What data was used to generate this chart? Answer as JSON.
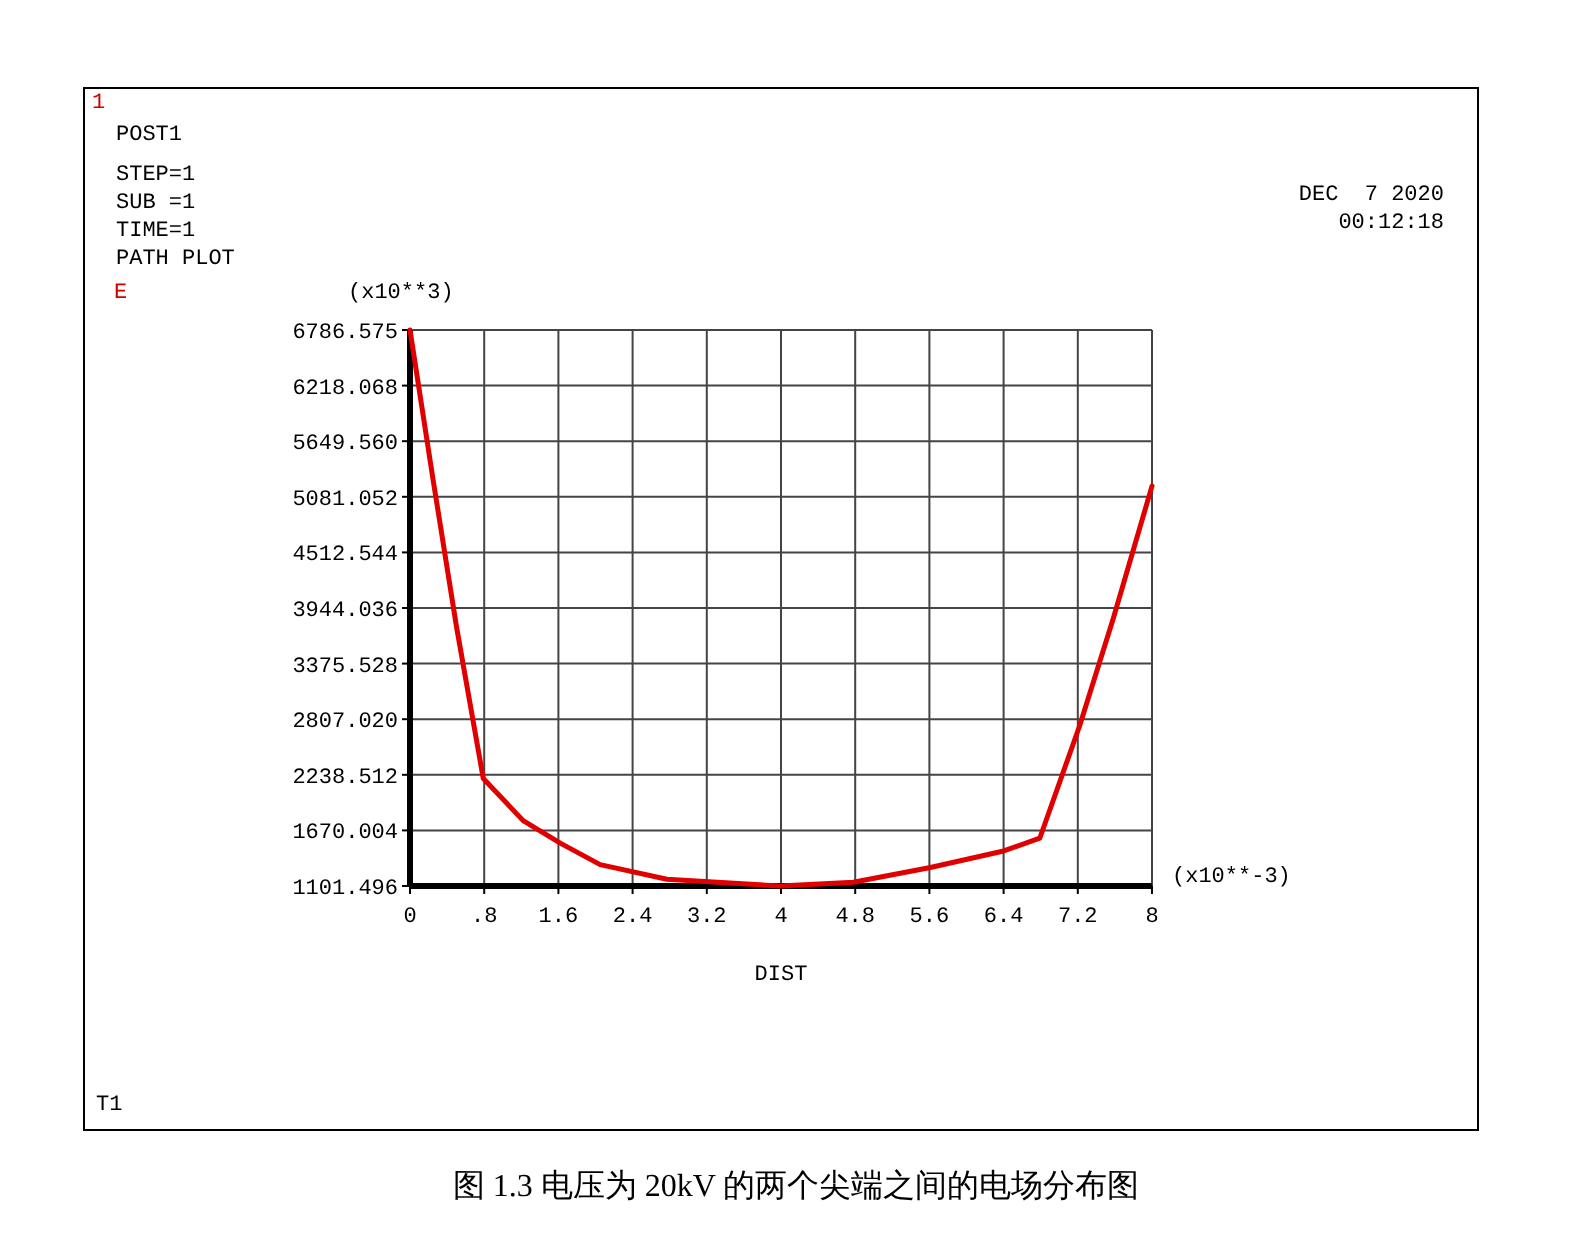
{
  "chart_data": {
    "type": "line",
    "title": "图 1.3 电压为 20kV 的两个尖端之间的电场分布图",
    "xlabel": "DIST",
    "annotations": [
      "1",
      "POST1",
      "STEP=1",
      "SUB =1",
      "TIME=1",
      "PATH PLOT",
      "DEC  7 2020",
      "00:12:18",
      "(x10**3)",
      "(x10**-3)",
      "T1",
      "E"
    ],
    "x": [
      0,
      0.25,
      0.5,
      0.79,
      1.22,
      1.62,
      2.05,
      2.77,
      3.99,
      4.78,
      5.61,
      6.4,
      6.79,
      7.22,
      7.58,
      8
    ],
    "series": [
      {
        "color": "#e00000",
        "values": [
          6786.575,
          5250,
          3760,
          2200,
          1770,
          1540,
          1320,
          1170,
          1101.5,
          1140,
          1290,
          1460,
          1590,
          2740,
          3830,
          5190
        ]
      }
    ],
    "xlim": [
      0,
      8
    ],
    "ylim": [
      1101.496,
      6786.575
    ],
    "xticks": [
      0,
      {
        "value": 0.8,
        "label": ".8"
      },
      1.6,
      2.4,
      3.2,
      4,
      4.8,
      5.6,
      6.4,
      7.2,
      8
    ],
    "yticks": [
      1101.496,
      1670.004,
      2238.512,
      {
        "value": 2807.02,
        "label": "2807.020"
      },
      3375.528,
      3944.036,
      4512.544,
      5081.052,
      {
        "value": 5649.56,
        "label": "5649.560"
      },
      6218.068,
      6786.575
    ],
    "grid": true,
    "marker": "none",
    "line_style": "solid"
  }
}
